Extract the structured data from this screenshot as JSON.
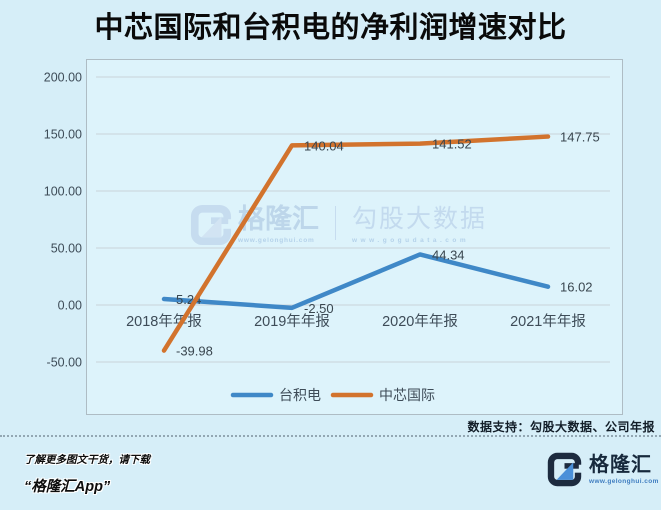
{
  "page": {
    "title": "中芯国际和台积电的净利润增速对比"
  },
  "chart_data": {
    "type": "line",
    "title": "中芯国际和台积电的净利润增速对比",
    "categories": [
      "2018年年报",
      "2019年年报",
      "2020年年报",
      "2021年年报"
    ],
    "series": [
      {
        "name": "台积电",
        "color": "#3f88c7",
        "values": [
          5.24,
          -2.5,
          44.34,
          16.02
        ]
      },
      {
        "name": "中芯国际",
        "color": "#d2732d",
        "values": [
          -39.98,
          140.04,
          141.52,
          147.75
        ]
      }
    ],
    "ylim": [
      -50,
      200
    ],
    "yticks": [
      200,
      150,
      100,
      50,
      0,
      -50
    ],
    "ytick_labels": [
      "200.00",
      "150.00",
      "100.00",
      "50.00",
      "0.00",
      "-50.00"
    ],
    "grid": true,
    "legend_position": "bottom-center",
    "data_labels_visible": true
  },
  "watermark": {
    "brand": "格隆汇",
    "brand_url": "www.gelonghui.com",
    "partner": "勾股大数据",
    "partner_url": "www.gogudata.com"
  },
  "footer": {
    "source_note": "数据支持：勾股大数据、公司年报",
    "promo_line1": "了解更多图文干货，请下载",
    "promo_line2": "“格隆汇App”",
    "logo_text": "格隆汇",
    "logo_url": "www.gelonghui.com"
  }
}
